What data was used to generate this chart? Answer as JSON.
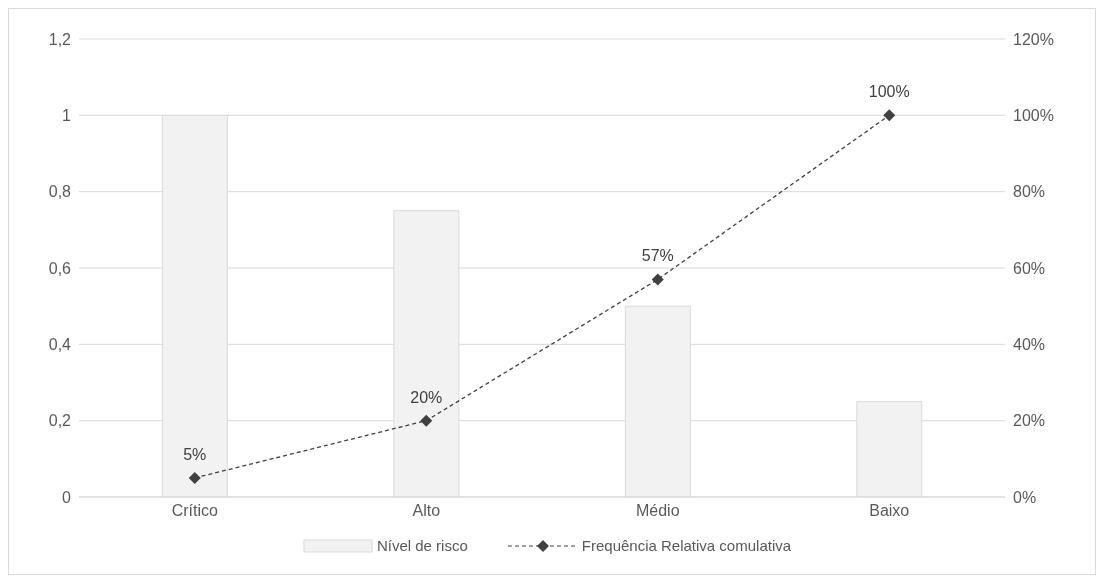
{
  "chart_data": {
    "type": "bar",
    "categories": [
      "Crítico",
      "Alto",
      "Médio",
      "Baixo"
    ],
    "series": [
      {
        "name": "Nível de risco",
        "color": "#f2f2f2",
        "values": [
          1,
          0.75,
          0.5,
          0.25
        ]
      },
      {
        "name": "Frequência Relativa comulativa",
        "type": "line",
        "axis": "y2",
        "color": "#404040",
        "values": [
          5,
          20,
          57,
          100
        ],
        "value_labels": [
          "5%",
          "20%",
          "57%",
          "100%"
        ],
        "marker": "diamond",
        "line_style": "dashed"
      }
    ],
    "ylim": [
      0,
      1.2
    ],
    "yticks": [
      0,
      {
        "value": 0.2,
        "label": "0,2"
      },
      {
        "value": 0.4,
        "label": "0,4"
      },
      {
        "value": 0.6,
        "label": "0,6"
      },
      {
        "value": 0.8,
        "label": "0,8"
      },
      1,
      {
        "value": 1.2,
        "label": "1,2"
      }
    ],
    "y2lim": [
      0,
      120
    ],
    "y2ticks": [
      {
        "value": 0,
        "label": "0%"
      },
      {
        "value": 20,
        "label": "20%"
      },
      {
        "value": 40,
        "label": "40%"
      },
      {
        "value": 60,
        "label": "60%"
      },
      {
        "value": 80,
        "label": "80%"
      },
      {
        "value": 100,
        "label": "100%"
      },
      {
        "value": 120,
        "label": "120%"
      }
    ],
    "grid": "y",
    "legend": "bottom"
  }
}
